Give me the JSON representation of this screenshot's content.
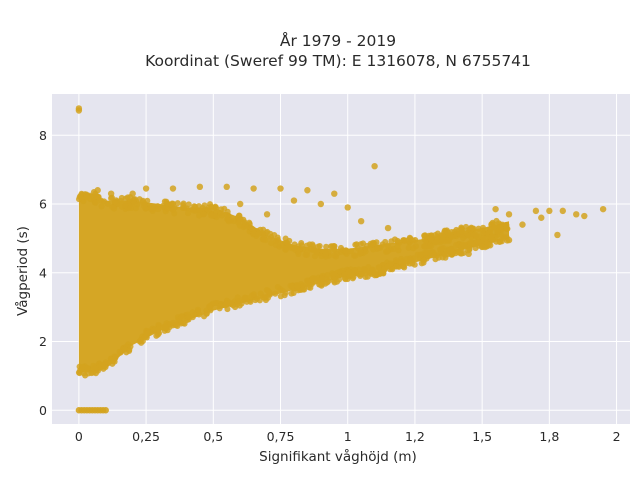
{
  "chart_data": {
    "type": "scatter",
    "title": "År 1979 - 2019",
    "subtitle": "Koordinat (Sweref 99 TM): E 1316078, N 6755741",
    "xlabel": "Signifikant våghöjd (m)",
    "ylabel": "Vågperiod (s)",
    "xlim": [
      -0.1,
      2.05
    ],
    "ylim": [
      -0.4,
      9.2
    ],
    "x_ticks": [
      0,
      0.25,
      0.5,
      0.75,
      1,
      1.25,
      1.5,
      1.75,
      2
    ],
    "x_tick_labels": [
      "0",
      "0,25",
      "0,5",
      "0,75",
      "1",
      "1,2",
      "1,5",
      "1,8",
      "2"
    ],
    "y_ticks": [
      0,
      2,
      4,
      6,
      8
    ],
    "y_tick_labels": [
      "0",
      "2",
      "4",
      "6",
      "8"
    ],
    "grid": true,
    "legend": "none",
    "colors": {
      "marker": "#d4a31e",
      "plot_background": "#e5e5ef",
      "grid": "#ffffff"
    },
    "series": [
      {
        "marker": "circle",
        "density_envelope": [
          {
            "x": 0.0,
            "y_low": 1.1,
            "y_high": 6.3
          },
          {
            "x": 0.05,
            "y_low": 1.1,
            "y_high": 6.3
          },
          {
            "x": 0.1,
            "y_low": 1.2,
            "y_high": 6.1
          },
          {
            "x": 0.2,
            "y_low": 1.9,
            "y_high": 6.1
          },
          {
            "x": 0.3,
            "y_low": 2.3,
            "y_high": 6.0
          },
          {
            "x": 0.4,
            "y_low": 2.6,
            "y_high": 5.9
          },
          {
            "x": 0.5,
            "y_low": 2.9,
            "y_high": 5.9
          },
          {
            "x": 0.6,
            "y_low": 3.1,
            "y_high": 5.6
          },
          {
            "x": 0.7,
            "y_low": 3.3,
            "y_high": 5.1
          },
          {
            "x": 0.8,
            "y_low": 3.5,
            "y_high": 4.8
          },
          {
            "x": 0.9,
            "y_low": 3.7,
            "y_high": 4.7
          },
          {
            "x": 1.0,
            "y_low": 3.9,
            "y_high": 4.7
          },
          {
            "x": 1.1,
            "y_low": 4.0,
            "y_high": 4.8
          },
          {
            "x": 1.2,
            "y_low": 4.2,
            "y_high": 4.9
          },
          {
            "x": 1.3,
            "y_low": 4.4,
            "y_high": 5.0
          },
          {
            "x": 1.4,
            "y_low": 4.6,
            "y_high": 5.2
          },
          {
            "x": 1.5,
            "y_low": 4.8,
            "y_high": 5.3
          },
          {
            "x": 1.6,
            "y_low": 5.0,
            "y_high": 5.5
          }
        ],
        "points": [
          [
            0.0,
            8.72
          ],
          [
            0.0,
            8.78
          ],
          [
            1.1,
            7.1
          ],
          [
            0.25,
            6.45
          ],
          [
            0.35,
            6.45
          ],
          [
            0.45,
            6.5
          ],
          [
            0.55,
            6.5
          ],
          [
            0.65,
            6.45
          ],
          [
            0.75,
            6.45
          ],
          [
            0.85,
            6.4
          ],
          [
            0.95,
            6.3
          ],
          [
            0.8,
            6.1
          ],
          [
            0.9,
            6.0
          ],
          [
            1.0,
            5.9
          ],
          [
            1.05,
            5.5
          ],
          [
            1.15,
            5.3
          ],
          [
            0.07,
            6.4
          ],
          [
            0.03,
            6.2
          ],
          [
            0.12,
            6.3
          ],
          [
            0.2,
            6.3
          ],
          [
            1.55,
            5.85
          ],
          [
            1.6,
            5.7
          ],
          [
            1.7,
            5.8
          ],
          [
            1.75,
            5.8
          ],
          [
            1.8,
            5.8
          ],
          [
            1.85,
            5.7
          ],
          [
            1.88,
            5.65
          ],
          [
            1.95,
            5.85
          ],
          [
            1.72,
            5.6
          ],
          [
            1.65,
            5.4
          ],
          [
            1.78,
            5.1
          ],
          [
            1.6,
            4.95
          ],
          [
            1.53,
            4.8
          ],
          [
            1.45,
            4.55
          ],
          [
            1.5,
            4.75
          ],
          [
            0.6,
            6.0
          ],
          [
            0.7,
            5.7
          ]
        ],
        "zero_period_points": [
          [
            0.0,
            0.0
          ],
          [
            0.01,
            0.0
          ],
          [
            0.02,
            0.0
          ],
          [
            0.03,
            0.0
          ],
          [
            0.04,
            0.0
          ],
          [
            0.05,
            0.0
          ],
          [
            0.06,
            0.0
          ],
          [
            0.07,
            0.0
          ],
          [
            0.08,
            0.0
          ],
          [
            0.09,
            0.0
          ],
          [
            0.1,
            0.0
          ]
        ]
      }
    ]
  }
}
